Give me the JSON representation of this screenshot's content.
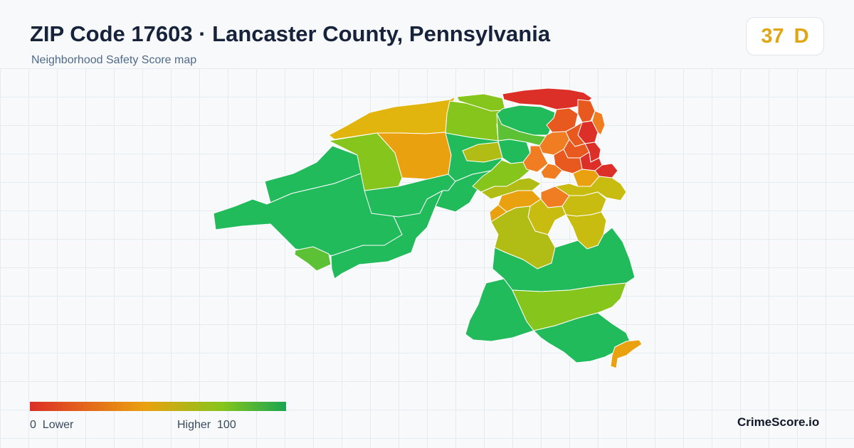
{
  "header": {
    "title": "ZIP Code 17603 · Lancaster County, Pennsylvania",
    "subtitle": "Neighborhood Safety Score map"
  },
  "score_badge": {
    "score": "37",
    "grade": "D",
    "color": "#e0a614"
  },
  "legend": {
    "min_value": "0",
    "min_label": "Lower",
    "max_label": "Higher",
    "max_value": "100",
    "low_color": "#dc2f27",
    "mid_color": "#eaa10f",
    "high_color": "#1aa550"
  },
  "brand": "CrimeScore.io",
  "map": {
    "zip": "17603",
    "color_scale": [
      "#dc2f27",
      "#e8591f",
      "#f07d22",
      "#eaa10f",
      "#e2b50e",
      "#c9bc10",
      "#b1bd14",
      "#86c51c",
      "#5dc136",
      "#22bb5c",
      "#1aa550"
    ]
  }
}
